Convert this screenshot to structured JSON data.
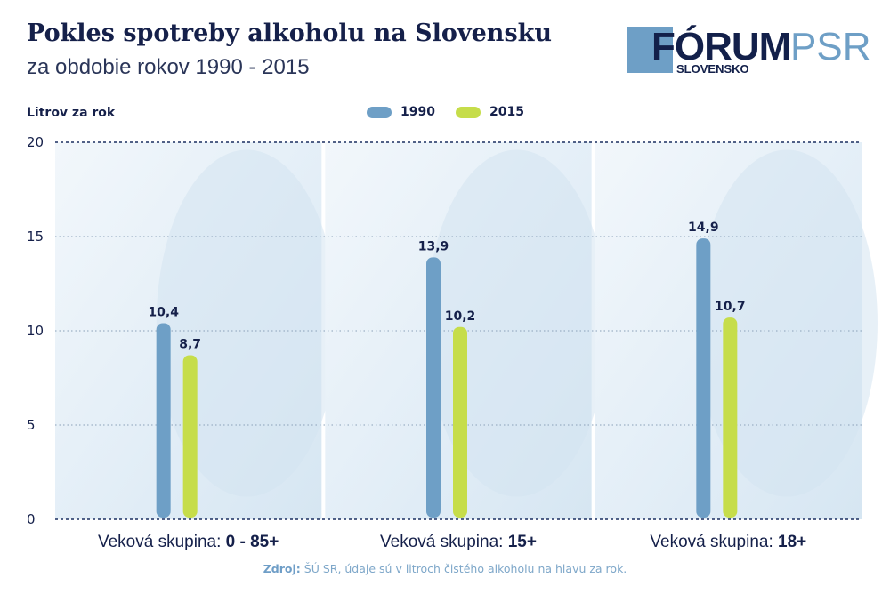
{
  "title": "Pokles spotreby alkoholu na Slovensku",
  "subtitle": "za obdobie rokov 1990 - 2015",
  "logo": {
    "main": "FÓRUM",
    "accent": "PSR",
    "sub": "SLOVENSKO",
    "colors": {
      "dark": "#13204a",
      "light": "#6e9fc6"
    }
  },
  "footnote": {
    "source_label": "Zdroj:",
    "text": "ŠÚ SR, údaje sú v litroch čistého alkoholu na hlavu za rok."
  },
  "colors": {
    "series_1990": "#6e9fc6",
    "series_2015": "#c6dd4a",
    "panel_bg": "#e7f1f8",
    "grid": "#8aa0b8",
    "axis": "#1a2e60",
    "text": "#15204a"
  },
  "chart_data": {
    "type": "bar",
    "title": "Pokles spotreby alkoholu na Slovensku",
    "subtitle": "za obdobie rokov 1990 - 2015",
    "ylabel": "Litrov za rok",
    "xlabel": "",
    "ylim": [
      0,
      20
    ],
    "yticks": [
      0,
      5,
      10,
      15,
      20
    ],
    "grid": true,
    "legend_position": "top-center",
    "categories": [
      {
        "prefix": "Veková skupina: ",
        "value": "0 - 85+"
      },
      {
        "prefix": "Veková skupina: ",
        "value": "15+"
      },
      {
        "prefix": "Veková skupina: ",
        "value": "18+"
      }
    ],
    "series": [
      {
        "name": "1990",
        "values": [
          10.4,
          13.9,
          14.9
        ],
        "labels": [
          "10,4",
          "13,9",
          "14,9"
        ],
        "color": "#6e9fc6"
      },
      {
        "name": "2015",
        "values": [
          8.7,
          10.2,
          10.7
        ],
        "labels": [
          "8,7",
          "10,2",
          "10,7"
        ],
        "color": "#c6dd4a"
      }
    ]
  }
}
